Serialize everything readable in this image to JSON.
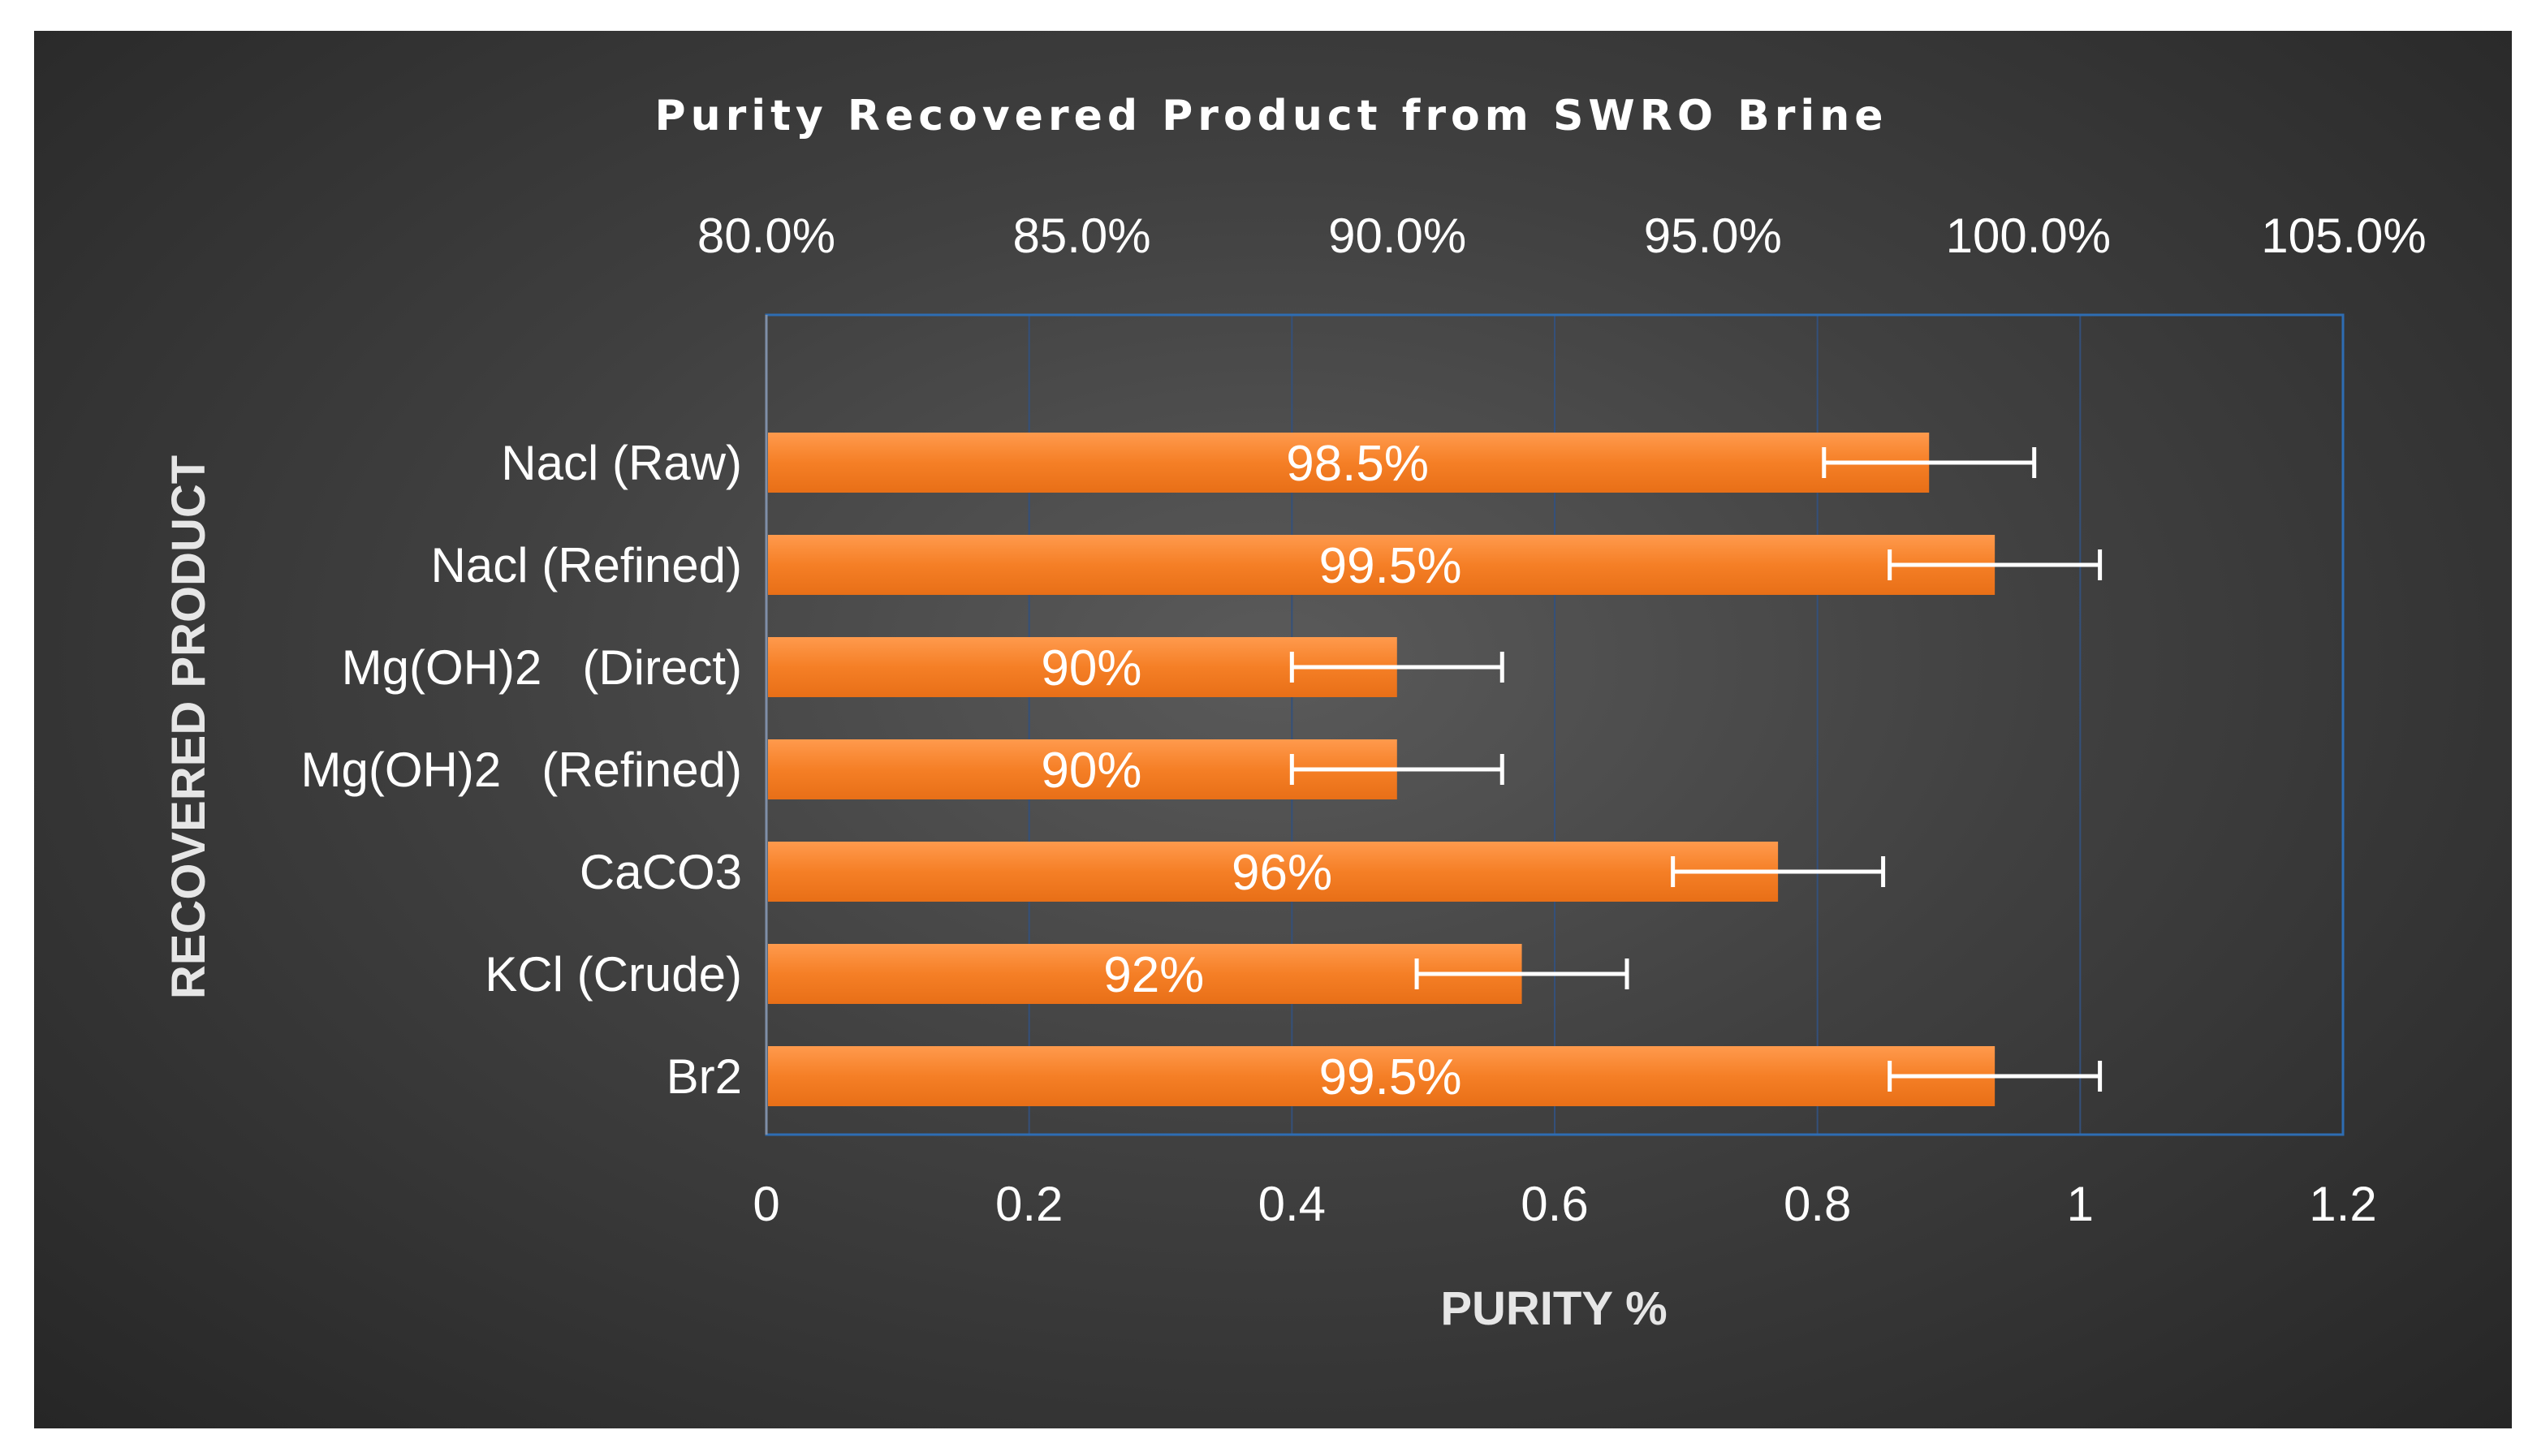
{
  "chart_data": {
    "type": "bar",
    "orientation": "horizontal",
    "title": "Purity Recovered Product from SWRO Brine",
    "xlabel": "PURITY %",
    "ylabel": "RECOVERED PRODUCT",
    "categories": [
      "Nacl (Raw)",
      "Nacl (Refined)",
      "Mg(OH)2   (Direct)",
      "Mg(OH)2   (Refined)",
      "CaCO3",
      "KCl (Crude)",
      "Br2"
    ],
    "values": [
      0.885,
      0.935,
      0.48,
      0.48,
      0.77,
      0.575,
      0.935
    ],
    "error_minus": [
      0.08,
      0.08,
      0.08,
      0.08,
      0.08,
      0.08,
      0.08
    ],
    "error_plus": [
      0.08,
      0.08,
      0.08,
      0.08,
      0.08,
      0.08,
      0.08
    ],
    "data_labels": [
      "98.5%",
      "99.5%",
      "90%",
      "90%",
      "96%",
      "92%",
      "99.5%"
    ],
    "xlim": [
      0,
      1.2
    ],
    "bottom_ticks": [
      "0",
      "0.2",
      "0.4",
      "0.6",
      "0.8",
      "1",
      "1.2"
    ],
    "top_ticks": [
      "80.0%",
      "85.0%",
      "90.0%",
      "95.0%",
      "100.0%",
      "105.0%"
    ],
    "grid": true,
    "colors": {
      "bar": "#f57f26",
      "bar_light": "#ff9a4d",
      "error_bar": "#ffffff",
      "plot_border": "#2e6db3",
      "gridline": "#34507a"
    }
  }
}
